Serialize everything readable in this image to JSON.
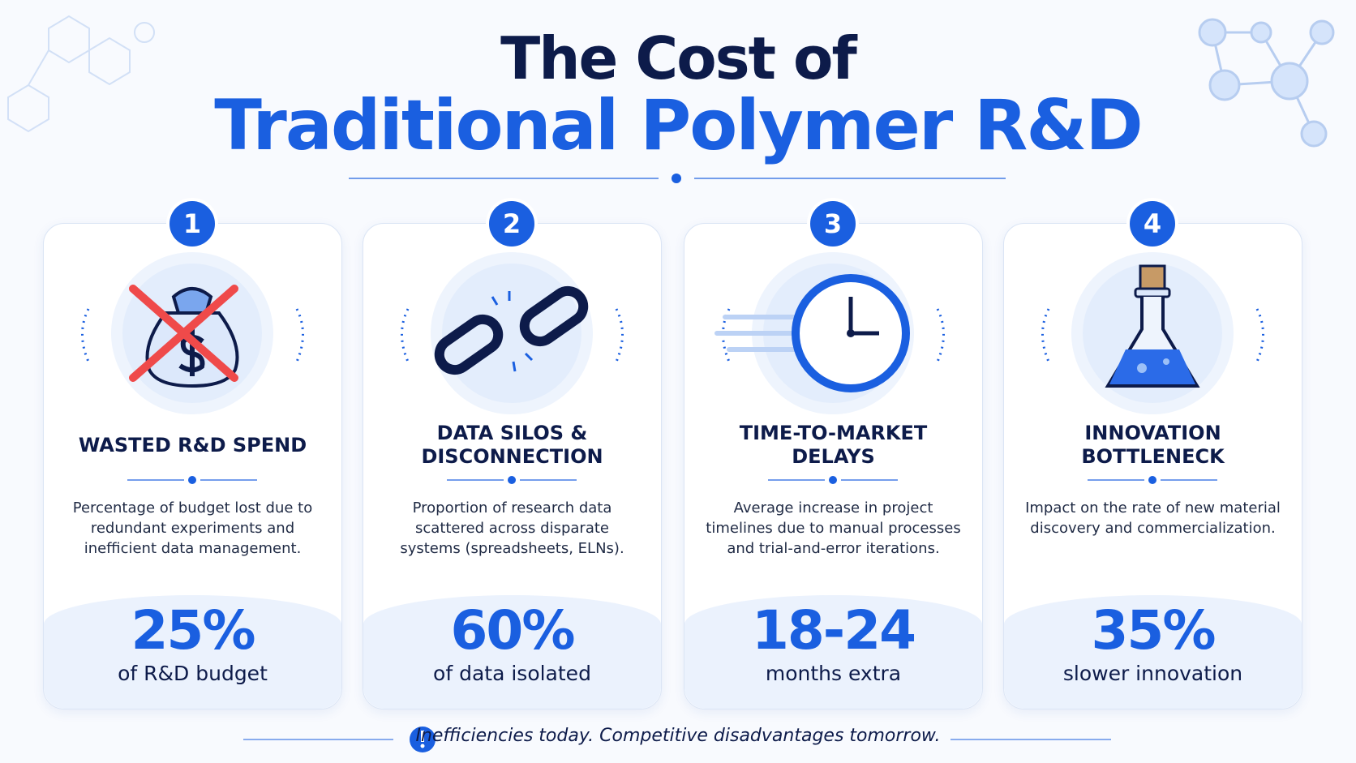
{
  "header": {
    "title_line1": "The Cost of",
    "title_line2": "Traditional Polymer R&D"
  },
  "cards": [
    {
      "number": "1",
      "heading": [
        "WASTED R&D SPEND"
      ],
      "description": "Percentage of budget lost due to redundant experiments and inefficient data management.",
      "stat": "25%",
      "stat_label": "of R&D budget"
    },
    {
      "number": "2",
      "heading": [
        "DATA SILOS &",
        "DISCONNECTION"
      ],
      "description": "Proportion of research data scattered across disparate systems (spreadsheets, ELNs).",
      "stat": "60%",
      "stat_label": "of data isolated"
    },
    {
      "number": "3",
      "heading": [
        "TIME-TO-MARKET",
        "DELAYS"
      ],
      "description": "Average increase in project timelines due to manual processes and trial-and-error iterations.",
      "stat": "18-24",
      "stat_label": "months extra"
    },
    {
      "number": "4",
      "heading": [
        "INNOVATION",
        "BOTTLENECK"
      ],
      "description": "Impact on the rate of new material discovery and commercialization.",
      "stat": "35%",
      "stat_label": "slower innovation"
    }
  ],
  "footer": {
    "text": "Inefficiencies today. Competitive disadvantages tomorrow."
  }
}
